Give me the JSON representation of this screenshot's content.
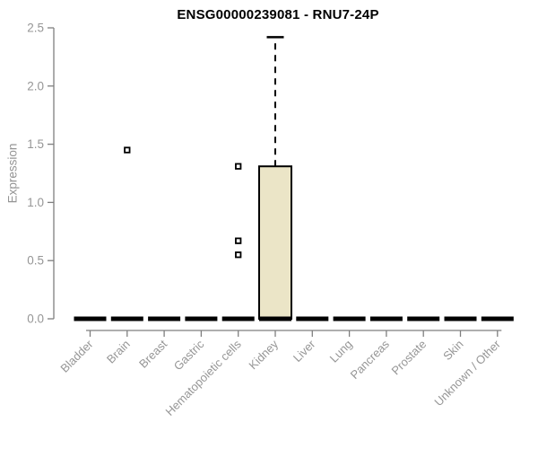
{
  "chart_data": {
    "type": "boxplot",
    "title": "ENSG00000239081 - RNU7-24P",
    "ylabel": "Expression",
    "xlabel": "",
    "ylim": [
      0,
      2.5
    ],
    "yticks": [
      0.0,
      0.5,
      1.0,
      1.5,
      2.0,
      2.5
    ],
    "grid": false,
    "legend": "none",
    "categories": [
      "Bladder",
      "Brain",
      "Breast",
      "Gastric",
      "Hematopoietic cells",
      "Kidney",
      "Liver",
      "Lung",
      "Pancreas",
      "Prostate",
      "Skin",
      "Unknown / Other"
    ],
    "boxes": [
      {
        "category": "Bladder",
        "median": 0,
        "q1": 0,
        "q3": 0,
        "whisker_low": 0,
        "whisker_high": 0,
        "outliers": []
      },
      {
        "category": "Brain",
        "median": 0,
        "q1": 0,
        "q3": 0,
        "whisker_low": 0,
        "whisker_high": 0,
        "outliers": [
          1.45
        ]
      },
      {
        "category": "Breast",
        "median": 0,
        "q1": 0,
        "q3": 0,
        "whisker_low": 0,
        "whisker_high": 0,
        "outliers": []
      },
      {
        "category": "Gastric",
        "median": 0,
        "q1": 0,
        "q3": 0,
        "whisker_low": 0,
        "whisker_high": 0,
        "outliers": []
      },
      {
        "category": "Hematopoietic cells",
        "median": 0,
        "q1": 0,
        "q3": 0,
        "whisker_low": 0,
        "whisker_high": 0,
        "outliers": [
          1.31,
          0.67,
          0.55
        ]
      },
      {
        "category": "Kidney",
        "median": 0,
        "q1": 0,
        "q3": 1.31,
        "whisker_low": 0,
        "whisker_high": 2.42,
        "outliers": []
      },
      {
        "category": "Liver",
        "median": 0,
        "q1": 0,
        "q3": 0,
        "whisker_low": 0,
        "whisker_high": 0,
        "outliers": []
      },
      {
        "category": "Lung",
        "median": 0,
        "q1": 0,
        "q3": 0,
        "whisker_low": 0,
        "whisker_high": 0,
        "outliers": []
      },
      {
        "category": "Pancreas",
        "median": 0,
        "q1": 0,
        "q3": 0,
        "whisker_low": 0,
        "whisker_high": 0,
        "outliers": []
      },
      {
        "category": "Prostate",
        "median": 0,
        "q1": 0,
        "q3": 0,
        "whisker_low": 0,
        "whisker_high": 0,
        "outliers": []
      },
      {
        "category": "Skin",
        "median": 0,
        "q1": 0,
        "q3": 0,
        "whisker_low": 0,
        "whisker_high": 0,
        "outliers": []
      },
      {
        "category": "Unknown / Other",
        "median": 0,
        "q1": 0,
        "q3": 0,
        "whisker_low": 0,
        "whisker_high": 0,
        "outliers": []
      }
    ],
    "colors": {
      "box_fill": "#ebe5c7",
      "box_border": "#000000",
      "median": "#000000",
      "whisker": "#000000",
      "outlier_fill": "#ffffff",
      "outlier_border": "#000000",
      "axis": "#7f7f7f",
      "tick_label": "#969696",
      "title": "#000000",
      "background": "#ffffff"
    }
  }
}
